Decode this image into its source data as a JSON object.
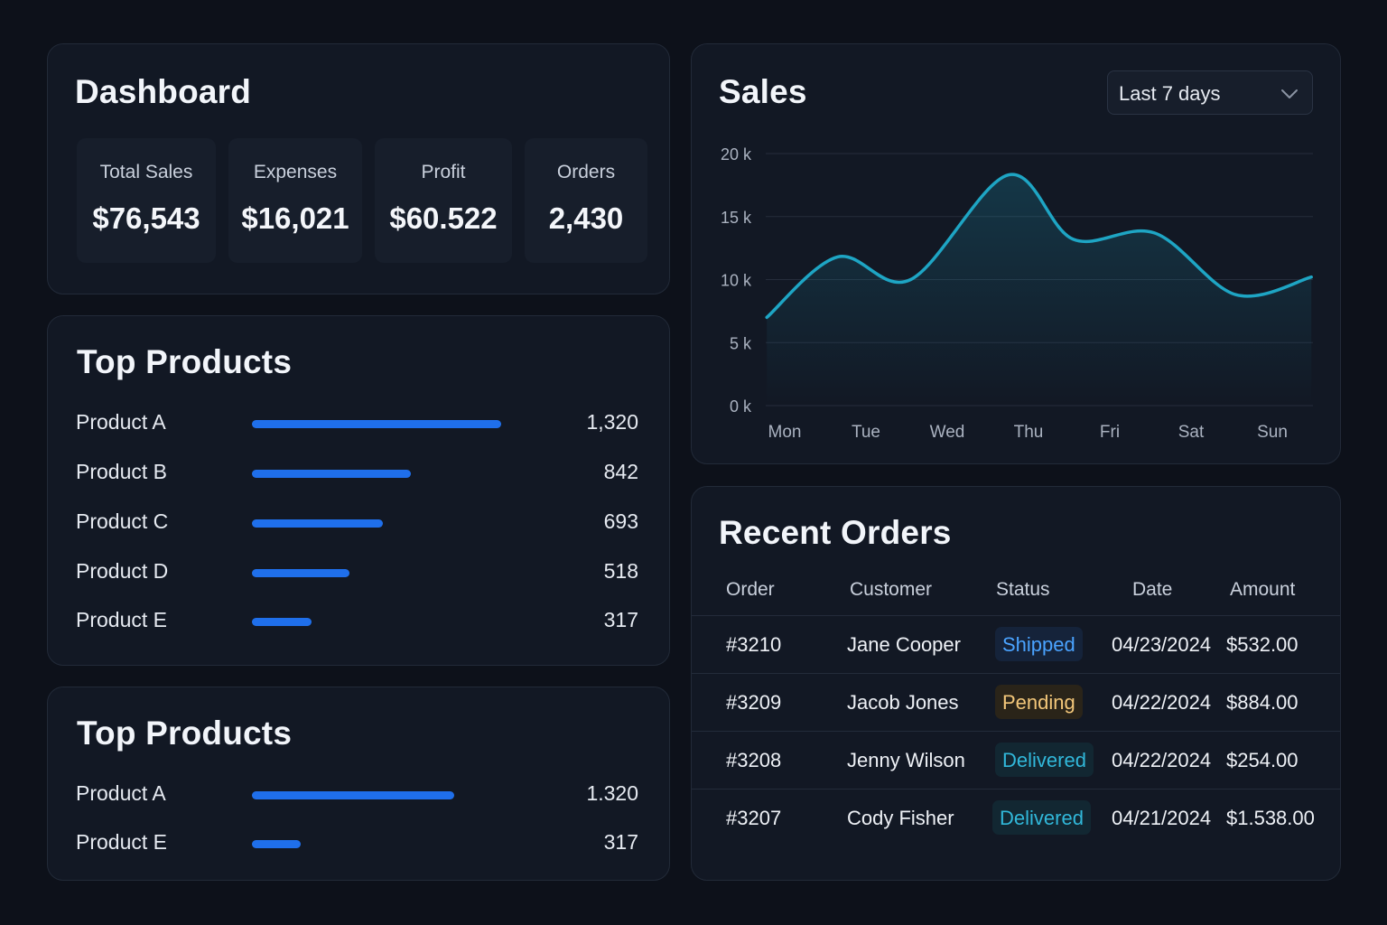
{
  "dashboard": {
    "title": "Dashboard",
    "kpis": [
      {
        "label": "Total Sales",
        "value": "$76,543"
      },
      {
        "label": "Expenses",
        "value": "$16,021"
      },
      {
        "label": "Profit",
        "value": "$60.522"
      },
      {
        "label": "Orders",
        "value": "2,430"
      }
    ]
  },
  "top_products": {
    "title": "Top Products",
    "items": [
      {
        "name": "Product A",
        "value": "1,320",
        "amount": 1320
      },
      {
        "name": "Product B",
        "value": "842",
        "amount": 842
      },
      {
        "name": "Product C",
        "value": "693",
        "amount": 693
      },
      {
        "name": "Product D",
        "value": "518",
        "amount": 518
      },
      {
        "name": "Product E",
        "value": "317",
        "amount": 317
      }
    ]
  },
  "top_products_2": {
    "title": "Top Products",
    "items": [
      {
        "name": "Product A",
        "value": "1.320",
        "amount": 1320
      },
      {
        "name": "Product E",
        "value": "317",
        "amount": 317
      }
    ]
  },
  "sales": {
    "title": "Sales",
    "range_select": "Last 7 days",
    "icons": {
      "dropdown": "chevron-down-icon"
    },
    "colors": {
      "line": "#1ea5c4",
      "grid": "#252d3b"
    }
  },
  "chart_data": {
    "type": "area",
    "title": "Sales",
    "categories": [
      "Mon",
      "Tue",
      "Wed",
      "Thu",
      "Fri",
      "Sat",
      "Sun"
    ],
    "y_ticks": [
      "0 k",
      "5 k",
      "10 k",
      "15 k",
      "20 k"
    ],
    "ylim": [
      0,
      20000
    ],
    "series": [
      {
        "name": "Sales",
        "x": [
          -0.22,
          0.65,
          1.55,
          2.75,
          3.55,
          4.55,
          5.55,
          6.48
        ],
        "values": [
          7000,
          11800,
          10000,
          18300,
          13200,
          13700,
          8800,
          10200
        ]
      }
    ],
    "grid": true
  },
  "recent_orders": {
    "title": "Recent Orders",
    "columns": [
      "Order",
      "Customer",
      "Status",
      "Date",
      "Amount"
    ],
    "rows": [
      {
        "order": "#3210",
        "customer": "Jane Cooper",
        "status": "Shipped",
        "date": "04/23/2024",
        "amount": "$532.00"
      },
      {
        "order": "#3209",
        "customer": "Jacob Jones",
        "status": "Pending",
        "date": "04/22/2024",
        "amount": "$884.00"
      },
      {
        "order": "#3208",
        "customer": "Jenny Wilson",
        "status": "Delivered",
        "date": "04/22/2024",
        "amount": "$254.00"
      },
      {
        "order": "#3207",
        "customer": "Cody Fisher",
        "status": "Delivered",
        "date": "04/21/2024",
        "amount": "$1.538.00"
      }
    ],
    "status_colors": {
      "Shipped": {
        "text": "#4aa3ff",
        "bg": "#15233a"
      },
      "Pending": {
        "text": "#f3c77a",
        "bg": "#2a2419"
      },
      "Delivered": {
        "text": "#31b8da",
        "bg": "#122732"
      }
    }
  }
}
